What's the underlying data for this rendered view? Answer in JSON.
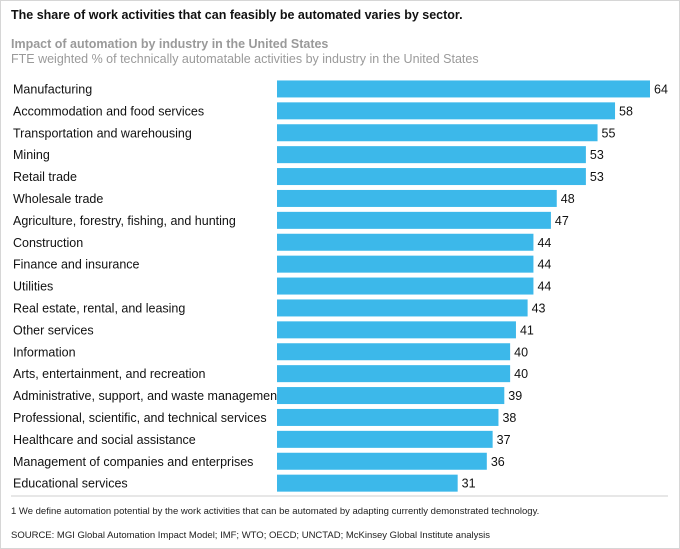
{
  "header": {
    "headline": "The share of work activities that can feasibly be automated varies by sector.",
    "subtitle": "Impact of automation by industry in the United States",
    "subtitle2": "FTE weighted % of technically automatable activities by industry in the United States"
  },
  "footer": {
    "footnote": "1  We define automation potential by the work activities that can be automated by adapting currently demonstrated technology.",
    "source": "SOURCE:  MGI Global Automation Impact Model; IMF; WTO; OECD; UNCTAD; McKinsey Global Institute analysis"
  },
  "chart_data": {
    "type": "bar",
    "orientation": "horizontal",
    "title": "Impact of automation by industry in the United States",
    "xlabel": "FTE weighted % of technically automatable activities by industry in the United States",
    "ylabel": "",
    "xlim": [
      0,
      64
    ],
    "colors": {
      "bar": "#3cb8ea"
    },
    "categories": [
      "Manufacturing",
      "Accommodation and food services",
      "Transportation and warehousing",
      "Mining",
      "Retail trade",
      "Wholesale trade",
      "Agriculture, forestry, fishing, and hunting",
      "Construction",
      "Finance and insurance",
      "Utilities",
      "Real estate, rental, and leasing",
      "Other services",
      "Information",
      "Arts, entertainment, and recreation",
      "Administrative, support, and waste management",
      "Professional, scientific, and technical services",
      "Healthcare and social assistance",
      "Management of companies and enterprises",
      "Educational services"
    ],
    "values": [
      64,
      58,
      55,
      53,
      53,
      48,
      47,
      44,
      44,
      44,
      43,
      41,
      40,
      40,
      39,
      38,
      37,
      36,
      31
    ]
  }
}
